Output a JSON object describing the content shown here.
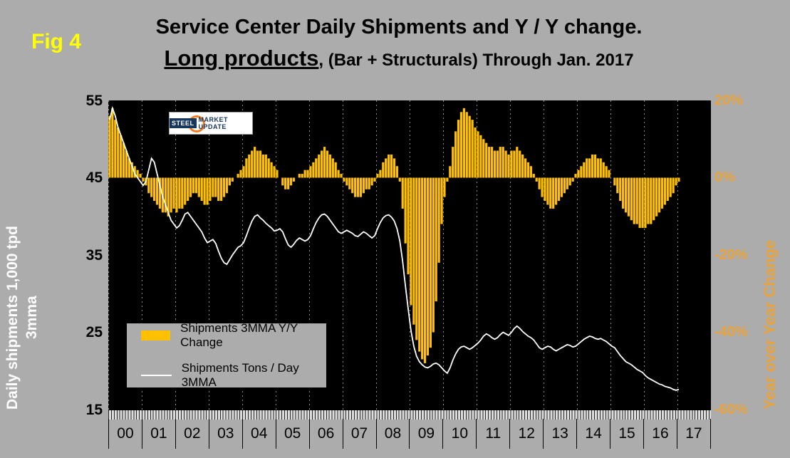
{
  "figure": {
    "fig_label": "Fig 4",
    "title_line1": "Service Center Daily Shipments and Y / Y change.",
    "title_line2_emphasis": "Long products",
    "title_line2_rest": ", (Bar + Structurals) Through Jan. 2017"
  },
  "logo": {
    "word1": "STEEL",
    "word2": "MARKET UPDATE"
  },
  "colors": {
    "page_bg": "#ACACAC",
    "plot_bg": "#000000",
    "bar": "#FFC000",
    "line": "#FFFFFF",
    "right_axis_text": "#E8A33D",
    "fig_label": "#FFFF00",
    "grid": "#8A8A8A"
  },
  "axes": {
    "left_title_line1": "Daily shipments 1,000 tpd",
    "left_title_line2": "3mma",
    "left_ticks": [
      "55",
      "45",
      "35",
      "25",
      "15"
    ],
    "right_title": "Year over Year Change",
    "right_ticks": [
      "20%",
      "0%",
      "-20%",
      "-40%",
      "-60%"
    ],
    "x_labels": [
      "00",
      "01",
      "02",
      "03",
      "04",
      "05",
      "06",
      "07",
      "08",
      "09",
      "10",
      "11",
      "12",
      "13",
      "14",
      "15",
      "16",
      "17"
    ]
  },
  "legend": {
    "bar_label": "Shipments 3MMA Y/Y Change",
    "line_label": "Shipments Tons / Day 3MMA"
  },
  "chart_data": {
    "type": "combo",
    "title": "Service Center Daily Shipments and Y / Y change. Long products, (Bar + Structurals) Through Jan. 2017",
    "frequency": "monthly",
    "x_start": "2000-01",
    "x_end": "2017-01",
    "x_year_labels": [
      "00",
      "01",
      "02",
      "03",
      "04",
      "05",
      "06",
      "07",
      "08",
      "09",
      "10",
      "11",
      "12",
      "13",
      "14",
      "15",
      "16",
      "17"
    ],
    "left_axis": {
      "label": "Daily shipments 1,000 tpd 3mma",
      "range": [
        15,
        55
      ],
      "ticks": [
        55,
        45,
        35,
        25,
        15
      ]
    },
    "right_axis": {
      "label": "Year over Year Change (%)",
      "range": [
        -60,
        20
      ],
      "ticks": [
        20,
        0,
        -20,
        -40,
        -60
      ]
    },
    "grid": "vertical-year-lines",
    "legend_position": "inside-lower-left",
    "series": [
      {
        "name": "Shipments 3MMA Y/Y Change",
        "type": "bar",
        "axis": "right",
        "unit": "%",
        "values": [
          16,
          18,
          15,
          13,
          11,
          9,
          7,
          5,
          4,
          3,
          2,
          1,
          -1,
          -2,
          -4,
          -5,
          -6,
          -7,
          -8,
          -9,
          -9,
          -10,
          -9,
          -8,
          -9,
          -8,
          -8,
          -7,
          -6,
          -5,
          -4,
          -4,
          -5,
          -6,
          -7,
          -7,
          -6,
          -5,
          -5,
          -6,
          -6,
          -5,
          -4,
          -2,
          -1,
          0,
          1,
          2,
          3,
          5,
          6,
          7,
          8,
          7,
          7,
          6,
          6,
          5,
          4,
          3,
          2,
          0,
          -2,
          -3,
          -3,
          -2,
          -1,
          0,
          1,
          1,
          2,
          2,
          3,
          4,
          5,
          6,
          7,
          8,
          7,
          6,
          5,
          4,
          2,
          1,
          -1,
          -2,
          -3,
          -4,
          -5,
          -5,
          -5,
          -4,
          -3,
          -3,
          -2,
          -1,
          1,
          2,
          4,
          5,
          6,
          6,
          5,
          3,
          -1,
          -8,
          -17,
          -25,
          -33,
          -38,
          -42,
          -45,
          -47,
          -48,
          -46,
          -44,
          -40,
          -32,
          -22,
          -12,
          -5,
          -1,
          3,
          8,
          12,
          15,
          17,
          18,
          17,
          16,
          15,
          13,
          12,
          11,
          10,
          9,
          8,
          8,
          7,
          7,
          8,
          8,
          7,
          6,
          7,
          7,
          8,
          7,
          6,
          5,
          4,
          3,
          1,
          -1,
          -3,
          -5,
          -6,
          -7,
          -8,
          -8,
          -7,
          -6,
          -5,
          -4,
          -3,
          -2,
          -1,
          1,
          2,
          3,
          4,
          5,
          5,
          6,
          6,
          5,
          5,
          4,
          3,
          2,
          0,
          -2,
          -4,
          -6,
          -8,
          -9,
          -10,
          -11,
          -12,
          -12,
          -13,
          -13,
          -13,
          -12,
          -12,
          -11,
          -10,
          -9,
          -8,
          -7,
          -6,
          -5,
          -4,
          -2,
          -1
        ]
      },
      {
        "name": "Shipments Tons / Day 3MMA",
        "type": "line",
        "axis": "left",
        "unit": "1,000 tons per day",
        "values": [
          52.5,
          54,
          53,
          51.5,
          50.5,
          49.5,
          48.5,
          47.5,
          46.5,
          45.5,
          45,
          44.5,
          44,
          44.5,
          46,
          47.5,
          47,
          45.5,
          44,
          42.5,
          41.5,
          40.5,
          39.5,
          39,
          38.5,
          38.8,
          39.5,
          40.3,
          40.5,
          40,
          39.5,
          39,
          38.5,
          38,
          37.2,
          36.6,
          36.8,
          37,
          36.5,
          35.5,
          34.6,
          34,
          33.8,
          34.4,
          35,
          35.5,
          36,
          36.2,
          36.6,
          37.5,
          38.5,
          39.4,
          40,
          40.2,
          39.8,
          39.5,
          39.1,
          38.8,
          38.5,
          38.1,
          38.2,
          38.4,
          38,
          37.1,
          36.3,
          36,
          36.4,
          36.9,
          37.2,
          37,
          36.8,
          37,
          37.5,
          38.4,
          39.2,
          39.8,
          40.2,
          40.3,
          40,
          39.5,
          39,
          38.5,
          38,
          37.8,
          38,
          38.2,
          38,
          37.8,
          37.5,
          37.4,
          37.7,
          38,
          37.8,
          37.5,
          37.2,
          37.5,
          38.4,
          39.2,
          39.8,
          40.1,
          40.2,
          39.9,
          39.4,
          38.4,
          36.8,
          34.2,
          31,
          28,
          25.2,
          23.2,
          21.9,
          21.2,
          20.8,
          20.5,
          20.4,
          20.6,
          20.9,
          21,
          20.8,
          20.4,
          20,
          19.7,
          20.4,
          21.4,
          22.2,
          22.8,
          23.1,
          23.2,
          23,
          22.8,
          23,
          23.3,
          23.6,
          24,
          24.5,
          24.8,
          24.6,
          24.3,
          24.1,
          24.3,
          24.7,
          25,
          24.8,
          24.6,
          25,
          25.5,
          25.8,
          25.5,
          25.1,
          24.8,
          24.5,
          24.3,
          24,
          23.5,
          23,
          22.8,
          23,
          23.2,
          23.1,
          22.8,
          22.6,
          22.8,
          23,
          23.2,
          23.4,
          23.3,
          23.1,
          23.2,
          23.5,
          23.8,
          24.1,
          24.3,
          24.5,
          24.4,
          24.2,
          24.1,
          24.2,
          24,
          23.8,
          23.5,
          23.2,
          23,
          22.5,
          22,
          21.6,
          21.2,
          21,
          20.8,
          20.5,
          20.2,
          20,
          19.8,
          19.4,
          19.1,
          18.9,
          18.7,
          18.5,
          18.3,
          18.2,
          18,
          17.9,
          17.8,
          17.6,
          17.5,
          17.6
        ]
      }
    ]
  }
}
